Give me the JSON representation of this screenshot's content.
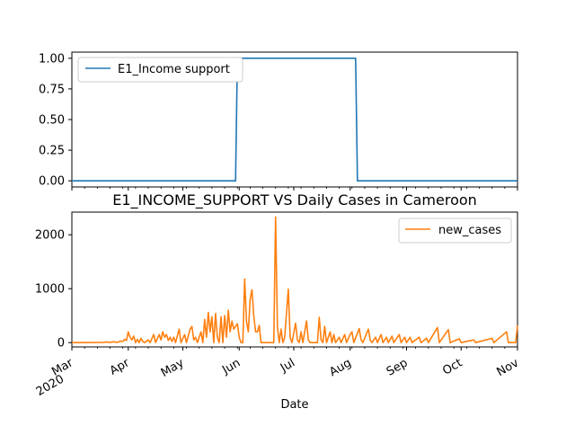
{
  "chart_data": [
    {
      "type": "line",
      "title": "",
      "xlabel": "",
      "ylabel": "",
      "ylim": [
        -0.05,
        1.05
      ],
      "yticks": [
        "0.00",
        "0.25",
        "0.50",
        "0.75",
        "1.00"
      ],
      "ytick_values": [
        0,
        0.25,
        0.5,
        0.75,
        1.0
      ],
      "legend_position": "upper-left",
      "grid": false,
      "series": [
        {
          "name": "E1_Income support",
          "color": "#1f77b4",
          "points": [
            [
              "2020-03-01",
              0
            ],
            [
              "2020-05-30",
              0
            ],
            [
              "2020-05-31",
              1
            ],
            [
              "2020-08-04",
              1
            ],
            [
              "2020-08-05",
              0
            ],
            [
              "2020-11-01",
              0
            ]
          ]
        }
      ]
    },
    {
      "type": "line",
      "title": "E1_INCOME_SUPPORT VS Daily Cases in Cameroon",
      "xlabel": "Date",
      "ylabel": "",
      "ylim": [
        -80,
        2420
      ],
      "yticks": [
        "0",
        "1000",
        "2000"
      ],
      "ytick_values": [
        0,
        1000,
        2000
      ],
      "xlim": [
        "2020-03-01",
        "2020-11-01"
      ],
      "xticks": [
        {
          "date": "2020-03-01",
          "label": "Mar",
          "sublabel": "2020"
        },
        {
          "date": "2020-04-01",
          "label": "Apr"
        },
        {
          "date": "2020-05-01",
          "label": "May"
        },
        {
          "date": "2020-06-01",
          "label": "Jun"
        },
        {
          "date": "2020-07-01",
          "label": "Jul"
        },
        {
          "date": "2020-08-01",
          "label": "Aug"
        },
        {
          "date": "2020-09-01",
          "label": "Sep"
        },
        {
          "date": "2020-10-01",
          "label": "Oct"
        },
        {
          "date": "2020-11-01",
          "label": "Nov"
        }
      ],
      "legend_position": "upper-right",
      "grid": false,
      "series": [
        {
          "name": "new_cases",
          "color": "#ff7f0e",
          "points": [
            [
              "2020-03-01",
              0
            ],
            [
              "2020-03-06",
              1
            ],
            [
              "2020-03-18",
              5
            ],
            [
              "2020-03-20",
              10
            ],
            [
              "2020-03-22",
              5
            ],
            [
              "2020-03-24",
              15
            ],
            [
              "2020-03-26",
              5
            ],
            [
              "2020-03-28",
              30
            ],
            [
              "2020-03-29",
              20
            ],
            [
              "2020-03-30",
              60
            ],
            [
              "2020-03-31",
              40
            ],
            [
              "2020-04-01",
              200
            ],
            [
              "2020-04-02",
              100
            ],
            [
              "2020-04-03",
              50
            ],
            [
              "2020-04-04",
              120
            ],
            [
              "2020-04-05",
              0
            ],
            [
              "2020-04-06",
              60
            ],
            [
              "2020-04-07",
              0
            ],
            [
              "2020-04-08",
              80
            ],
            [
              "2020-04-09",
              20
            ],
            [
              "2020-04-10",
              0
            ],
            [
              "2020-04-12",
              50
            ],
            [
              "2020-04-13",
              0
            ],
            [
              "2020-04-15",
              150
            ],
            [
              "2020-04-16",
              0
            ],
            [
              "2020-04-18",
              150
            ],
            [
              "2020-04-19",
              50
            ],
            [
              "2020-04-20",
              200
            ],
            [
              "2020-04-21",
              100
            ],
            [
              "2020-04-22",
              150
            ],
            [
              "2020-04-23",
              40
            ],
            [
              "2020-04-24",
              100
            ],
            [
              "2020-04-25",
              20
            ],
            [
              "2020-04-26",
              100
            ],
            [
              "2020-04-27",
              0
            ],
            [
              "2020-04-29",
              250
            ],
            [
              "2020-04-30",
              0
            ],
            [
              "2020-05-02",
              150
            ],
            [
              "2020-05-03",
              0
            ],
            [
              "2020-05-05",
              250
            ],
            [
              "2020-05-06",
              300
            ],
            [
              "2020-05-07",
              50
            ],
            [
              "2020-05-08",
              100
            ],
            [
              "2020-05-09",
              0
            ],
            [
              "2020-05-10",
              100
            ],
            [
              "2020-05-11",
              200
            ],
            [
              "2020-05-12",
              0
            ],
            [
              "2020-05-13",
              430
            ],
            [
              "2020-05-14",
              100
            ],
            [
              "2020-05-15",
              560
            ],
            [
              "2020-05-16",
              200
            ],
            [
              "2020-05-17",
              480
            ],
            [
              "2020-05-18",
              0
            ],
            [
              "2020-05-19",
              540
            ],
            [
              "2020-05-20",
              100
            ],
            [
              "2020-05-21",
              0
            ],
            [
              "2020-05-22",
              480
            ],
            [
              "2020-05-23",
              0
            ],
            [
              "2020-05-24",
              500
            ],
            [
              "2020-05-25",
              100
            ],
            [
              "2020-05-26",
              600
            ],
            [
              "2020-05-27",
              200
            ],
            [
              "2020-05-28",
              400
            ],
            [
              "2020-05-29",
              250
            ],
            [
              "2020-05-30",
              300
            ],
            [
              "2020-05-31",
              350
            ],
            [
              "2020-06-01",
              100
            ],
            [
              "2020-06-02",
              0
            ],
            [
              "2020-06-03",
              0
            ],
            [
              "2020-06-04",
              1180
            ],
            [
              "2020-06-05",
              400
            ],
            [
              "2020-06-06",
              200
            ],
            [
              "2020-06-07",
              800
            ],
            [
              "2020-06-08",
              980
            ],
            [
              "2020-06-09",
              500
            ],
            [
              "2020-06-10",
              200
            ],
            [
              "2020-06-11",
              200
            ],
            [
              "2020-06-12",
              320
            ],
            [
              "2020-06-13",
              0
            ],
            [
              "2020-06-20",
              0
            ],
            [
              "2020-06-21",
              2330
            ],
            [
              "2020-06-22",
              300
            ],
            [
              "2020-06-23",
              0
            ],
            [
              "2020-06-24",
              250
            ],
            [
              "2020-06-25",
              0
            ],
            [
              "2020-06-26",
              100
            ],
            [
              "2020-06-28",
              990
            ],
            [
              "2020-06-29",
              100
            ],
            [
              "2020-06-30",
              0
            ],
            [
              "2020-07-02",
              360
            ],
            [
              "2020-07-03",
              50
            ],
            [
              "2020-07-04",
              0
            ],
            [
              "2020-07-05",
              200
            ],
            [
              "2020-07-06",
              0
            ],
            [
              "2020-07-08",
              400
            ],
            [
              "2020-07-09",
              50
            ],
            [
              "2020-07-10",
              0
            ],
            [
              "2020-07-14",
              0
            ],
            [
              "2020-07-15",
              470
            ],
            [
              "2020-07-16",
              50
            ],
            [
              "2020-07-17",
              0
            ],
            [
              "2020-07-18",
              300
            ],
            [
              "2020-07-19",
              0
            ],
            [
              "2020-07-21",
              200
            ],
            [
              "2020-07-22",
              0
            ],
            [
              "2020-07-23",
              150
            ],
            [
              "2020-07-24",
              0
            ],
            [
              "2020-07-26",
              100
            ],
            [
              "2020-07-27",
              0
            ],
            [
              "2020-07-29",
              150
            ],
            [
              "2020-07-30",
              0
            ],
            [
              "2020-08-01",
              150
            ],
            [
              "2020-08-02",
              200
            ],
            [
              "2020-08-03",
              0
            ],
            [
              "2020-08-06",
              260
            ],
            [
              "2020-08-07",
              50
            ],
            [
              "2020-08-08",
              0
            ],
            [
              "2020-08-11",
              250
            ],
            [
              "2020-08-12",
              50
            ],
            [
              "2020-08-13",
              0
            ],
            [
              "2020-08-15",
              100
            ],
            [
              "2020-08-16",
              0
            ],
            [
              "2020-08-18",
              150
            ],
            [
              "2020-08-19",
              0
            ],
            [
              "2020-08-21",
              100
            ],
            [
              "2020-08-22",
              0
            ],
            [
              "2020-08-24",
              120
            ],
            [
              "2020-08-25",
              0
            ],
            [
              "2020-08-28",
              150
            ],
            [
              "2020-08-29",
              0
            ],
            [
              "2020-08-31",
              100
            ],
            [
              "2020-09-01",
              0
            ],
            [
              "2020-09-03",
              100
            ],
            [
              "2020-09-04",
              0
            ],
            [
              "2020-09-08",
              100
            ],
            [
              "2020-09-09",
              0
            ],
            [
              "2020-09-12",
              80
            ],
            [
              "2020-09-13",
              0
            ],
            [
              "2020-09-18",
              280
            ],
            [
              "2020-09-19",
              0
            ],
            [
              "2020-09-24",
              240
            ],
            [
              "2020-09-25",
              0
            ],
            [
              "2020-09-30",
              70
            ],
            [
              "2020-10-01",
              0
            ],
            [
              "2020-10-08",
              50
            ],
            [
              "2020-10-09",
              0
            ],
            [
              "2020-10-18",
              80
            ],
            [
              "2020-10-19",
              0
            ],
            [
              "2020-10-26",
              200
            ],
            [
              "2020-10-27",
              0
            ],
            [
              "2020-10-31",
              0
            ],
            [
              "2020-11-01",
              320
            ]
          ]
        }
      ]
    }
  ]
}
